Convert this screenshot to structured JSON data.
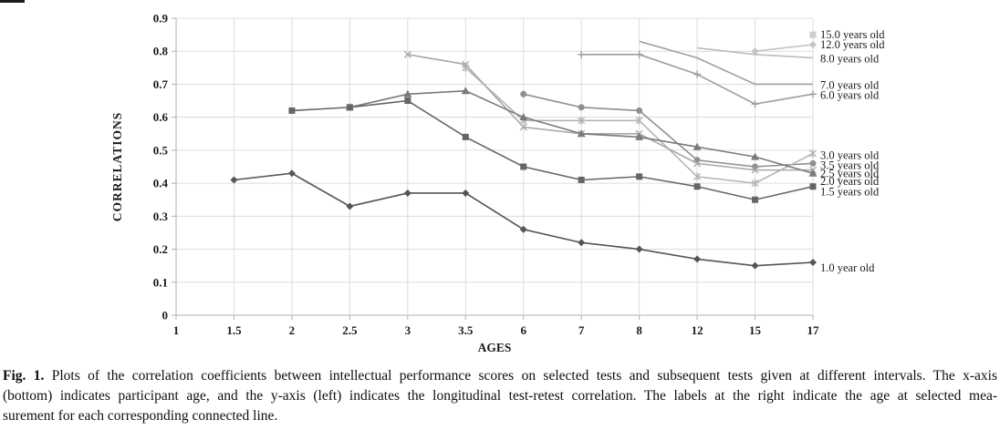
{
  "figure": {
    "caption": {
      "fig_label": "Fig. 1.",
      "line1": " Plots of the correlation coefficients between intellectual performance scores on selected tests and subsequent tests given at different intervals. The x-axis",
      "line2": "(bottom) indicates participant age, and the y-axis (left) indicates the longitudinal test-retest correlation. The labels at the right indicate the age at selected mea-",
      "line3": "surement for each corresponding connected line."
    }
  },
  "chart_data": {
    "type": "line",
    "title": "",
    "xlabel": "AGES",
    "ylabel": "CORRELATIONS",
    "x_categories": [
      "1",
      "1.5",
      "2",
      "2.5",
      "3",
      "3.5",
      "6",
      "7",
      "8",
      "12",
      "15",
      "17"
    ],
    "y_tick_labels": [
      "0",
      "0.1",
      "0.2",
      "0.3",
      "0.4",
      "0.5",
      "0.6",
      "0.7",
      "0.8",
      "0.9"
    ],
    "ylim": [
      0,
      0.9
    ],
    "grid": true,
    "legend_position": "labels-at-right-line-ends",
    "grid_color": "#dcdcdc",
    "axis_color": "#b0b0b0",
    "series": [
      {
        "name": "1.0 year old",
        "marker": "diamond",
        "color": "#555555",
        "label_dy": 6,
        "values": [
          null,
          0.41,
          0.43,
          0.33,
          0.37,
          0.37,
          0.26,
          0.22,
          0.2,
          0.17,
          0.15,
          0.16
        ]
      },
      {
        "name": "1.5 years old",
        "marker": "square",
        "color": "#666666",
        "label_dy": 6,
        "values": [
          null,
          null,
          0.62,
          0.63,
          0.65,
          0.54,
          0.45,
          0.41,
          0.42,
          0.39,
          0.35,
          0.39
        ]
      },
      {
        "name": "2.0 years old",
        "marker": "triangle",
        "color": "#7a7a7a",
        "label_dy": 9,
        "values": [
          null,
          null,
          null,
          0.63,
          0.67,
          0.68,
          0.6,
          0.55,
          0.54,
          0.51,
          0.48,
          0.43
        ]
      },
      {
        "name": "2.5 years old",
        "marker": "x",
        "color": "#a8a8a8",
        "label_dy": 4,
        "values": [
          null,
          null,
          null,
          null,
          0.79,
          0.76,
          0.57,
          0.55,
          0.55,
          0.46,
          0.44,
          0.44
        ]
      },
      {
        "name": "3.0 years old",
        "marker": "star",
        "color": "#b4b4b4",
        "label_dy": 2,
        "values": [
          null,
          null,
          null,
          null,
          null,
          0.75,
          0.59,
          0.59,
          0.59,
          0.42,
          0.4,
          0.49
        ]
      },
      {
        "name": "3.5 years old",
        "marker": "circle",
        "color": "#8f8f8f",
        "label_dy": 2,
        "values": [
          null,
          null,
          null,
          null,
          null,
          null,
          0.67,
          0.63,
          0.62,
          0.47,
          0.45,
          0.46
        ]
      },
      {
        "name": "6.0 years old",
        "marker": "plus",
        "color": "#9c9c9c",
        "label_dy": 1,
        "values": [
          null,
          null,
          null,
          null,
          null,
          null,
          null,
          0.79,
          0.79,
          0.73,
          0.64,
          0.67
        ]
      },
      {
        "name": "7.0 years old",
        "marker": "none",
        "color": "#9f9f9f",
        "label_dy": 1,
        "values": [
          null,
          null,
          null,
          null,
          null,
          null,
          null,
          null,
          0.83,
          0.78,
          0.7,
          0.7
        ]
      },
      {
        "name": "8.0 years old",
        "marker": "none",
        "color": "#bcbcbc",
        "label_dy": 1,
        "values": [
          null,
          null,
          null,
          null,
          null,
          null,
          null,
          null,
          null,
          0.81,
          0.79,
          0.78
        ]
      },
      {
        "name": "12.0 years old",
        "marker": "diamond",
        "color": "#c4c4c4",
        "label_dy": 0,
        "values": [
          null,
          null,
          null,
          null,
          null,
          null,
          null,
          null,
          null,
          null,
          0.8,
          0.82
        ]
      },
      {
        "name": "15.0 years old",
        "marker": "square",
        "color": "#cccccc",
        "label_dy": 0,
        "values": [
          null,
          null,
          null,
          null,
          null,
          null,
          null,
          null,
          null,
          null,
          null,
          0.85
        ]
      }
    ]
  }
}
